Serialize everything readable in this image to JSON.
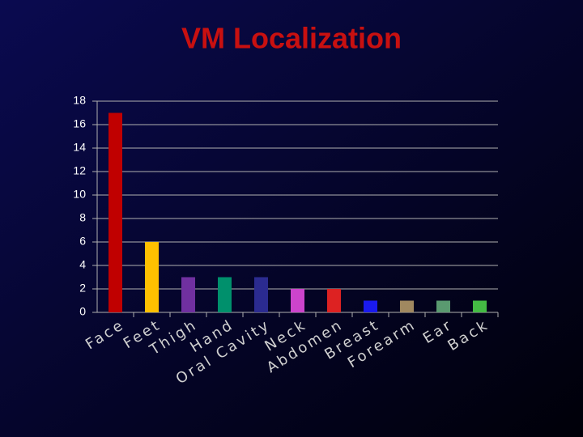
{
  "chart_data": {
    "type": "bar",
    "title": "VM Localization",
    "categories": [
      "Face",
      "Feet",
      "Thigh",
      "Hand",
      "Oral Cavity",
      "Neck",
      "Abdomen",
      "Breast",
      "Forearm",
      "Ear",
      "Back"
    ],
    "values": [
      17,
      6,
      3,
      3,
      3,
      2,
      2,
      1,
      1,
      1,
      1
    ],
    "colors": [
      "#c00000",
      "#ffc000",
      "#7030a0",
      "#00906c",
      "#2b2b90",
      "#cc44cc",
      "#dd2222",
      "#1a1aee",
      "#a08860",
      "#5a9a70",
      "#44bb44"
    ],
    "ylim": [
      0,
      18
    ],
    "yticks": [
      0,
      2,
      4,
      6,
      8,
      10,
      12,
      14,
      16,
      18
    ],
    "grid": true
  }
}
